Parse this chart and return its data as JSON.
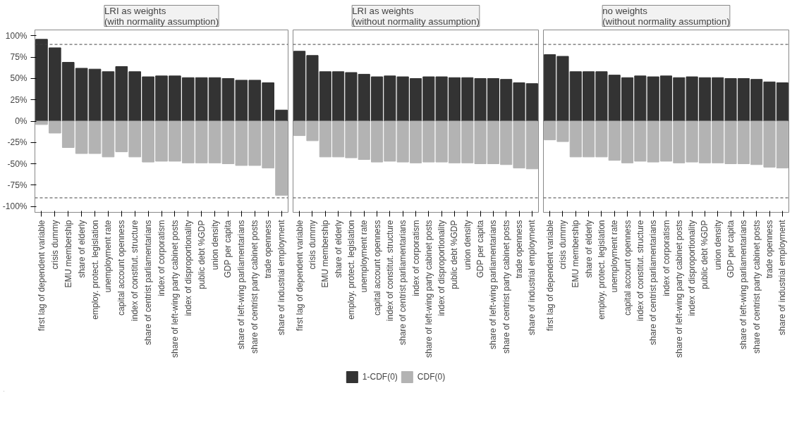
{
  "chart_data": [
    {
      "type": "bar",
      "title": "LRI as weights\n(with normality assumption)",
      "categories": [
        "first lag of dependent variable",
        "crisis dummy",
        "EMU membership",
        "share of elderly",
        "employ. protect. legislation",
        "unemployment rate",
        "capital account openness",
        "index of constitut. structure",
        "share of centrist parliamentarians",
        "index of corporatism",
        "share of left-wing party cabinet posts",
        "index of disproportionality",
        "public debt %GDP",
        "union density",
        "GDP per capita",
        "share of left-wing parliamentarians",
        "share of centrist party cabinet posts",
        "trade openness",
        "share of industrial employment"
      ],
      "series": [
        {
          "name": "1-CDF(0)",
          "color": "#333333",
          "values": [
            96,
            86,
            69,
            62,
            61,
            58,
            64,
            58,
            52,
            53,
            53,
            51,
            51,
            51,
            50,
            48,
            48,
            45,
            13
          ]
        },
        {
          "name": "CDF(0)",
          "color": "#b3b3b3",
          "values": [
            -4,
            -14,
            -31,
            -38,
            -38,
            -42,
            -36,
            -42,
            -48,
            -47,
            -47,
            -49,
            -49,
            -49,
            -50,
            -52,
            -52,
            -55,
            -87
          ]
        }
      ],
      "ylim": [
        -107,
        107
      ],
      "yticks": [
        {
          "value": -100,
          "label": "-100%"
        },
        {
          "value": -75,
          "label": "-75%"
        },
        {
          "value": -50,
          "label": "-50%"
        },
        {
          "value": -25,
          "label": "-25%"
        },
        {
          "value": 0,
          "label": "0%"
        },
        {
          "value": 25,
          "label": "25%"
        },
        {
          "value": 50,
          "label": "50%"
        },
        {
          "value": 75,
          "label": "75%"
        },
        {
          "value": 100,
          "label": "100%"
        }
      ],
      "ref_lines": [
        {
          "axis": "y",
          "value": 90,
          "line_style": "dashed"
        },
        {
          "axis": "y",
          "value": -90,
          "line_style": "dashed"
        }
      ],
      "grid": false,
      "stacked": true,
      "legend": "bottom"
    },
    {
      "type": "bar",
      "title": "LRI as weights\n(without normality assumption)",
      "categories": [
        "first lag of dependent variable",
        "crisis dummy",
        "EMU membership",
        "share of elderly",
        "employ. protect. legislation",
        "unemployment rate",
        "capital account openness",
        "index of constitut. structure",
        "share of centrist parliamentarians",
        "index of corporatism",
        "share of left-wing party cabinet posts",
        "index of disproportionality",
        "public debt %GDP",
        "union density",
        "GDP per capita",
        "share of left-wing parliamentarians",
        "share of centrist party cabinet posts",
        "trade openness",
        "share of industrial employment"
      ],
      "series": [
        {
          "color": "#333333",
          "values": [
            82,
            77,
            58,
            58,
            57,
            55,
            52,
            53,
            52,
            50,
            52,
            52,
            51,
            51,
            50,
            50,
            49,
            45,
            44
          ]
        },
        {
          "color": "#b3b3b3",
          "values": [
            -17,
            -23,
            -42,
            -42,
            -43,
            -45,
            -48,
            -47,
            -48,
            -49,
            -48,
            -48,
            -49,
            -49,
            -50,
            -50,
            -51,
            -55,
            -56
          ]
        }
      ],
      "ylim": [
        -107,
        107
      ],
      "ref_lines": [
        {
          "axis": "y",
          "value": 90,
          "line_style": "dashed"
        },
        {
          "axis": "y",
          "value": -90,
          "line_style": "dashed"
        }
      ],
      "grid": false,
      "stacked": true,
      "tick_labels": "x"
    },
    {
      "type": "bar",
      "title": "no weights\n(without normality assumption)",
      "categories": [
        "first lag of dependent variable",
        "crisis dummy",
        "EMU membership",
        "share of elderly",
        "employ. protect. legislation",
        "unemployment rate",
        "capital account openness",
        "index of constitut. structure",
        "share of centrist parliamentarians",
        "index of corporatism",
        "share of left-wing party cabinet posts",
        "index of disproportionality",
        "public debt %GDP",
        "union density",
        "GDP per capita",
        "share of left-wing parliamentarians",
        "share of centrist party cabinet posts",
        "trade openness",
        "share of industrial employment"
      ],
      "series": [
        {
          "color": "#333333",
          "values": [
            78,
            76,
            58,
            58,
            58,
            54,
            51,
            53,
            52,
            53,
            51,
            52,
            51,
            51,
            50,
            50,
            49,
            46,
            45
          ]
        },
        {
          "color": "#b3b3b3",
          "values": [
            -22,
            -24,
            -42,
            -42,
            -42,
            -46,
            -49,
            -47,
            -48,
            -47,
            -49,
            -48,
            -49,
            -49,
            -50,
            -50,
            -51,
            -54,
            -55
          ]
        }
      ],
      "ylim": [
        -107,
        107
      ],
      "ref_lines": [
        {
          "axis": "y",
          "value": 90,
          "line_style": "dashed"
        },
        {
          "axis": "y",
          "value": -90,
          "line_style": "dashed"
        }
      ],
      "grid": false,
      "stacked": true,
      "tick_labels": "x"
    }
  ]
}
